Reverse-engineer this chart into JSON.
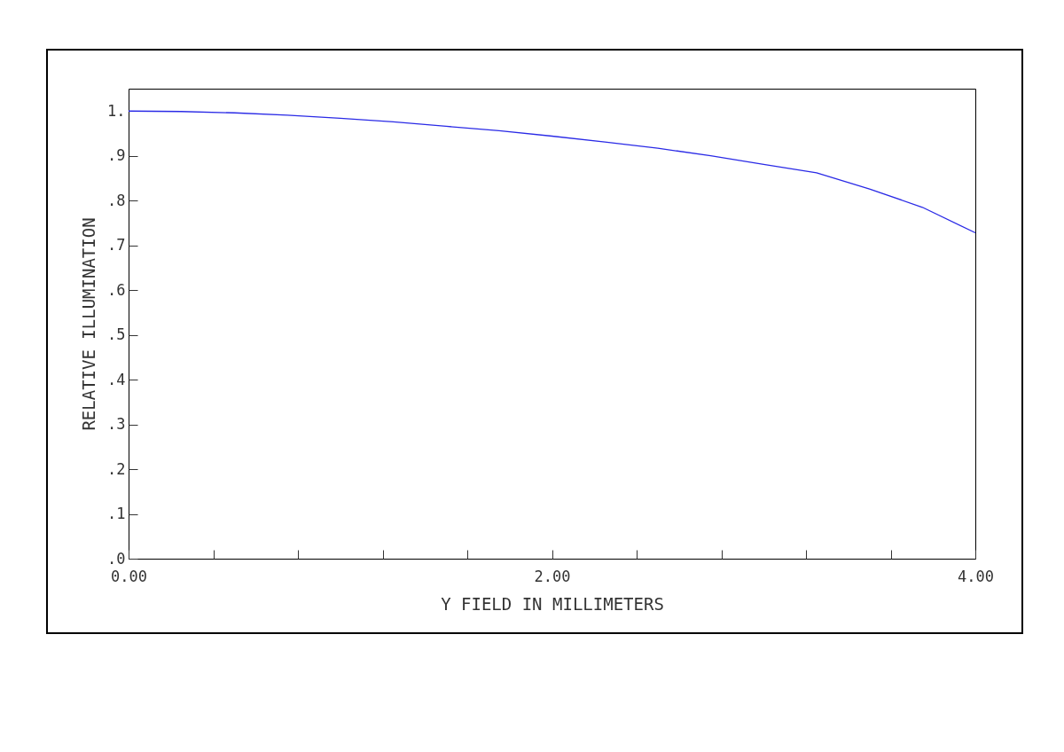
{
  "chart_data": {
    "type": "line",
    "xlabel": "Y FIELD IN MILLIMETERS",
    "ylabel": "RELATIVE ILLUMINATION",
    "x": [
      0,
      0.25,
      0.5,
      0.75,
      1,
      1.25,
      1.5,
      1.75,
      2,
      2.25,
      2.5,
      2.75,
      3,
      3.25,
      3.5,
      3.75,
      4
    ],
    "series": [
      {
        "color": "#2a2ae6",
        "values": [
          1.0,
          0.999,
          0.996,
          0.991,
          0.984,
          0.976,
          0.966,
          0.956,
          0.944,
          0.931,
          0.917,
          0.9,
          0.881,
          0.862,
          0.826,
          0.785,
          0.728
        ]
      }
    ],
    "xlim": [
      0,
      4
    ],
    "xticks": [
      {
        "value": 0,
        "label": "0.00"
      },
      {
        "value": 0.4,
        "label": null
      },
      {
        "value": 0.8,
        "label": null
      },
      {
        "value": 1.2,
        "label": null
      },
      {
        "value": 1.6,
        "label": null
      },
      {
        "value": 2,
        "label": "2.00"
      },
      {
        "value": 2.4,
        "label": null
      },
      {
        "value": 2.8,
        "label": null
      },
      {
        "value": 3.2,
        "label": null
      },
      {
        "value": 3.6,
        "label": null
      },
      {
        "value": 4,
        "label": "4.00"
      }
    ],
    "ylim": [
      0,
      1.05
    ],
    "yticks": [
      {
        "value": 0,
        "label": ".0"
      },
      {
        "value": 0.1,
        "label": ".1"
      },
      {
        "value": 0.2,
        "label": ".2"
      },
      {
        "value": 0.3,
        "label": ".3"
      },
      {
        "value": 0.4,
        "label": ".4"
      },
      {
        "value": 0.5,
        "label": ".5"
      },
      {
        "value": 0.6,
        "label": ".6"
      },
      {
        "value": 0.7,
        "label": ".7"
      },
      {
        "value": 0.8,
        "label": ".8"
      },
      {
        "value": 0.9,
        "label": ".9"
      },
      {
        "value": 1,
        "label": "1."
      }
    ],
    "grid": false,
    "line_style": "solid",
    "marker": "none"
  }
}
